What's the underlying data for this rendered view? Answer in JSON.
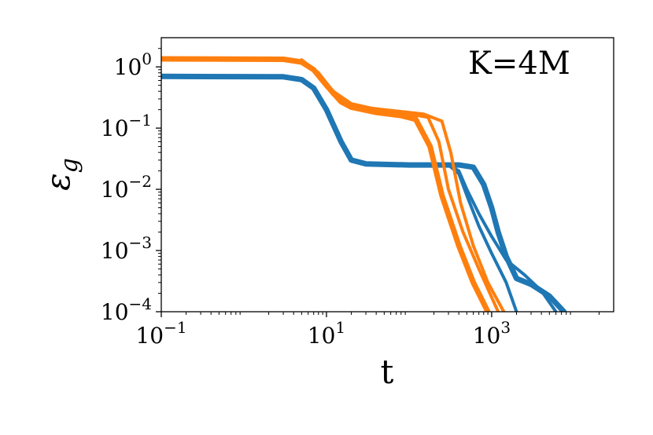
{
  "chart_data": {
    "type": "line",
    "title": "",
    "annotation": "K=4M",
    "xlabel": "t",
    "ylabel": "ε_g",
    "xscale": "log",
    "yscale": "log",
    "xlim": [
      0.1,
      30000
    ],
    "ylim": [
      0.0001,
      3
    ],
    "grid": false,
    "legend": "none",
    "x_ticks": [
      {
        "value": 0.1,
        "base": "10",
        "exp": "−1"
      },
      {
        "value": 10,
        "base": "10",
        "exp": "1"
      },
      {
        "value": 1000,
        "base": "10",
        "exp": "3"
      }
    ],
    "y_ticks": [
      {
        "value": 1,
        "base": "10",
        "exp": "0"
      },
      {
        "value": 0.1,
        "base": "10",
        "exp": "−1"
      },
      {
        "value": 0.01,
        "base": "10",
        "exp": "−2"
      },
      {
        "value": 0.001,
        "base": "10",
        "exp": "−3"
      },
      {
        "value": 0.0001,
        "base": "10",
        "exp": "−4"
      }
    ],
    "series": [
      {
        "color": "#1f77b4",
        "stroke": 7,
        "points": [
          [
            0.1,
            0.7
          ],
          [
            3,
            0.69
          ],
          [
            5,
            0.62
          ],
          [
            7,
            0.45
          ],
          [
            10,
            0.2
          ],
          [
            15,
            0.06
          ],
          [
            20,
            0.03
          ],
          [
            30,
            0.026
          ],
          [
            100,
            0.025
          ],
          [
            400,
            0.025
          ],
          [
            600,
            0.023
          ],
          [
            800,
            0.012
          ],
          [
            1000,
            0.005
          ],
          [
            1200,
            0.002
          ],
          [
            1500,
            0.0008
          ],
          [
            2000,
            0.00035
          ],
          [
            3000,
            0.00028
          ],
          [
            5000,
            0.00018
          ],
          [
            7500,
            0.0001
          ]
        ]
      },
      {
        "color": "#1f77b4",
        "stroke": 4,
        "points": [
          [
            300,
            0.025
          ],
          [
            400,
            0.02
          ],
          [
            500,
            0.01
          ],
          [
            700,
            0.004
          ],
          [
            1000,
            0.0017
          ],
          [
            1500,
            0.0007
          ],
          [
            2500,
            0.0004
          ],
          [
            4000,
            0.00022
          ],
          [
            6000,
            0.0001
          ]
        ]
      },
      {
        "color": "#1f77b4",
        "stroke": 4,
        "points": [
          [
            300,
            0.025
          ],
          [
            400,
            0.018
          ],
          [
            500,
            0.008
          ],
          [
            700,
            0.0025
          ],
          [
            1000,
            0.0009
          ],
          [
            1500,
            0.0003
          ],
          [
            2000,
            0.0001
          ]
        ]
      },
      {
        "color": "#ff7f0e",
        "stroke": 7,
        "points": [
          [
            0.1,
            1.35
          ],
          [
            3,
            1.33
          ],
          [
            5,
            1.2
          ],
          [
            7,
            0.9
          ],
          [
            10,
            0.5
          ],
          [
            15,
            0.27
          ],
          [
            20,
            0.22
          ],
          [
            40,
            0.18
          ],
          [
            80,
            0.16
          ],
          [
            120,
            0.14
          ],
          [
            180,
            0.05
          ],
          [
            250,
            0.008
          ],
          [
            400,
            0.0012
          ],
          [
            600,
            0.0003
          ],
          [
            900,
            0.0001
          ]
        ]
      },
      {
        "color": "#ff7f0e",
        "stroke": 4,
        "points": [
          [
            5,
            1.3
          ],
          [
            8,
            0.8
          ],
          [
            12,
            0.4
          ],
          [
            20,
            0.25
          ],
          [
            50,
            0.19
          ],
          [
            100,
            0.17
          ],
          [
            170,
            0.15
          ],
          [
            230,
            0.06
          ],
          [
            300,
            0.01
          ],
          [
            450,
            0.002
          ],
          [
            700,
            0.0005
          ],
          [
            1200,
            0.0001
          ]
        ]
      },
      {
        "color": "#ff7f0e",
        "stroke": 4,
        "points": [
          [
            5,
            1.3
          ],
          [
            8,
            0.75
          ],
          [
            12,
            0.35
          ],
          [
            20,
            0.23
          ],
          [
            50,
            0.2
          ],
          [
            150,
            0.17
          ],
          [
            250,
            0.13
          ],
          [
            320,
            0.04
          ],
          [
            420,
            0.006
          ],
          [
            600,
            0.0012
          ],
          [
            900,
            0.0003
          ],
          [
            1400,
            0.0001
          ]
        ]
      }
    ]
  }
}
